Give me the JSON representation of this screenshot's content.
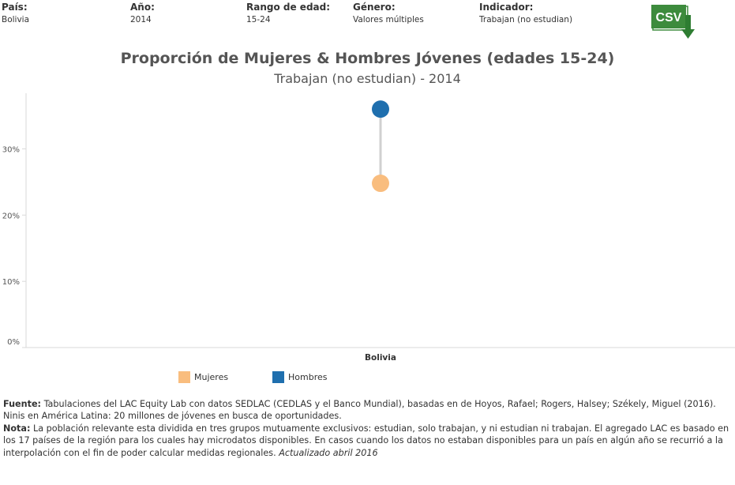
{
  "filters": [
    {
      "id": "pais",
      "label": "País:",
      "value": "Bolivia"
    },
    {
      "id": "anio",
      "label": "Año:",
      "value": "2014"
    },
    {
      "id": "rango",
      "label": "Rango de edad:",
      "value": "15-24"
    },
    {
      "id": "genero",
      "label": "Género:",
      "value": "Valores múltiples"
    },
    {
      "id": "indicador",
      "label": "Indicador:",
      "value": "Trabajan (no estudian)"
    }
  ],
  "csv_button": {
    "label": "CSV",
    "icon": "csv-download-icon",
    "color": "#3d8b3d",
    "arrow_color": "#2e7d32"
  },
  "colors": {
    "mujeres": "#f9bd7e",
    "hombres": "#1f6fae",
    "connector": "#d0d0d0",
    "axis": "#d9d9d9"
  },
  "chart_data": {
    "type": "dot-range",
    "title": "Proporción de Mujeres & Hombres Jóvenes (edades 15-24)",
    "subtitle": "Trabajan (no estudian) - 2014",
    "categories": [
      "Bolivia"
    ],
    "series": [
      {
        "name": "Mujeres",
        "values": [
          24.8
        ]
      },
      {
        "name": "Hombres",
        "values": [
          36.0
        ]
      }
    ],
    "yticks": [
      0,
      10,
      20,
      30
    ],
    "ytick_labels": [
      "0%",
      "10%",
      "20%",
      "30%"
    ],
    "ylim": [
      0,
      38.4
    ],
    "xlabel": "",
    "ylabel": ""
  },
  "legend": [
    {
      "name": "Mujeres"
    },
    {
      "name": "Hombres"
    }
  ],
  "footer": {
    "fuente_label": "Fuente:",
    "fuente_text": " Tabulaciones del LAC Equity Lab con datos SEDLAC (CEDLAS y el Banco Mundial), basadas en de Hoyos, Rafael; Rogers, Halsey; Székely, Miguel (2016). Ninis en América Latina: 20 millones de jóvenes en busca de oportunidades.",
    "nota_label": "Nota:",
    "nota_text": " La población relevante esta dividida en tres grupos mutuamente exclusivos: estudian, solo trabajan, y ni estudian ni trabajan. El agregado LAC es basado en los 17 países de la región para los cuales hay microdatos disponibles. En casos cuando los datos no estaban disponibles para un país en algún año se recurrió a la interpolación con el fin de poder calcular medidas regionales. ",
    "updated": "Actualizado abril 2016"
  }
}
